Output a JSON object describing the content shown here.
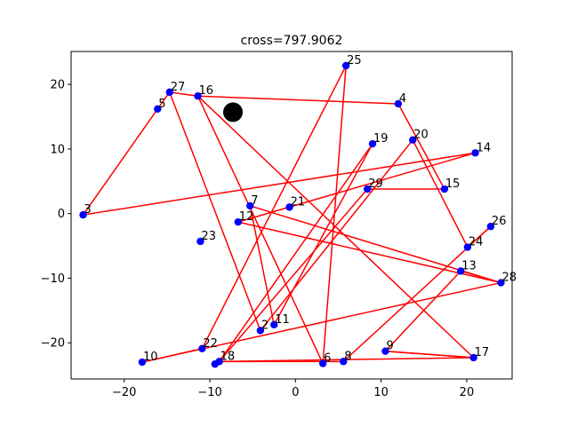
{
  "chart_data": {
    "type": "scatter",
    "title": "cross=797.9062",
    "xlim": [
      -26.2,
      25.3
    ],
    "ylim": [
      -25.6,
      25.1
    ],
    "xticks": [
      -20,
      -10,
      0,
      10,
      20
    ],
    "yticks": [
      -20,
      -10,
      0,
      10,
      20
    ],
    "grid": false,
    "marker_color": "#0000ff",
    "line_color": "#ff0000",
    "points": [
      {
        "id": "2",
        "x": -4.1,
        "y": -18.1
      },
      {
        "id": "3",
        "x": -24.8,
        "y": -0.2
      },
      {
        "id": "4",
        "x": 12.0,
        "y": 17.0
      },
      {
        "id": "5",
        "x": -16.1,
        "y": 16.2
      },
      {
        "id": "6",
        "x": 3.2,
        "y": -23.2
      },
      {
        "id": "7",
        "x": -5.3,
        "y": 1.2
      },
      {
        "id": "8",
        "x": 5.6,
        "y": -22.9
      },
      {
        "id": "9",
        "x": 10.5,
        "y": -21.3
      },
      {
        "id": "10",
        "x": -17.9,
        "y": -23.0
      },
      {
        "id": "11",
        "x": -2.5,
        "y": -17.2
      },
      {
        "id": "12",
        "x": -6.7,
        "y": -1.3
      },
      {
        "id": "13",
        "x": 19.3,
        "y": -8.9
      },
      {
        "id": "14",
        "x": 21.0,
        "y": 9.4
      },
      {
        "id": "15",
        "x": 17.4,
        "y": 3.8
      },
      {
        "id": "16",
        "x": -11.4,
        "y": 18.2
      },
      {
        "id": "17",
        "x": 20.8,
        "y": -22.3
      },
      {
        "id": "18",
        "x": -8.9,
        "y": -22.9
      },
      {
        "id": "19",
        "x": 9.0,
        "y": 10.8
      },
      {
        "id": "20",
        "x": 13.7,
        "y": 11.4
      },
      {
        "id": "21",
        "x": -0.7,
        "y": 1.0
      },
      {
        "id": "22",
        "x": -10.9,
        "y": -20.9
      },
      {
        "id": "23",
        "x": -11.1,
        "y": -4.3
      },
      {
        "id": "24",
        "x": 20.1,
        "y": -5.2
      },
      {
        "id": "25",
        "x": 5.9,
        "y": 22.9
      },
      {
        "id": "26",
        "x": 22.8,
        "y": -2.0
      },
      {
        "id": "27",
        "x": -14.7,
        "y": 18.8
      },
      {
        "id": "28",
        "x": 24.0,
        "y": -10.7
      },
      {
        "id": "29",
        "x": 8.4,
        "y": 3.8
      },
      {
        "id": "",
        "x": -9.4,
        "y": -23.3
      }
    ],
    "path": [
      "27",
      "5",
      "3",
      "14",
      "12",
      "28",
      "13",
      "9",
      "17",
      "16",
      "6",
      "25",
      "22",
      "10",
      "28",
      "7",
      "11",
      "19",
      "18",
      "8",
      "26",
      "24",
      "20",
      "2",
      "27",
      "16",
      "4",
      "15",
      "29",
      "18",
      "17",
      "9"
    ],
    "highlight": {
      "x": -7.3,
      "y": 15.7,
      "color": "#000000"
    }
  }
}
